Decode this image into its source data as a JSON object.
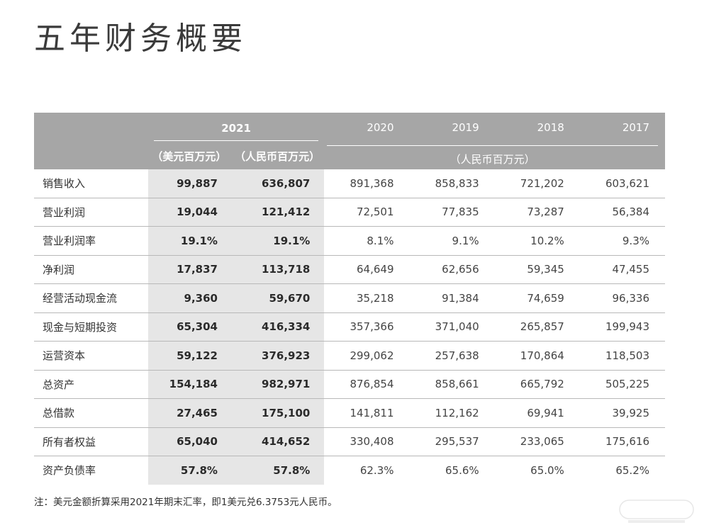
{
  "title": "五年财务概要",
  "header": {
    "y2021": "2021",
    "years": [
      "2020",
      "2019",
      "2018",
      "2017"
    ],
    "unit_usd": "（美元百万元）",
    "unit_rmb_2021": "（人民币百万元）",
    "unit_rmb_others": "（人民币百万元）"
  },
  "rows": [
    {
      "label": "销售收入",
      "usd": "99,887",
      "rmb": "636,807",
      "y2020": "891,368",
      "y2019": "858,833",
      "y2018": "721,202",
      "y2017": "603,621"
    },
    {
      "label": "营业利润",
      "usd": "19,044",
      "rmb": "121,412",
      "y2020": "72,501",
      "y2019": "77,835",
      "y2018": "73,287",
      "y2017": "56,384"
    },
    {
      "label": "营业利润率",
      "usd": "19.1%",
      "rmb": "19.1%",
      "y2020": "8.1%",
      "y2019": "9.1%",
      "y2018": "10.2%",
      "y2017": "9.3%"
    },
    {
      "label": "净利润",
      "usd": "17,837",
      "rmb": "113,718",
      "y2020": "64,649",
      "y2019": "62,656",
      "y2018": "59,345",
      "y2017": "47,455"
    },
    {
      "label": "经营活动现金流",
      "usd": "9,360",
      "rmb": "59,670",
      "y2020": "35,218",
      "y2019": "91,384",
      "y2018": "74,659",
      "y2017": "96,336"
    },
    {
      "label": "现金与短期投资",
      "usd": "65,304",
      "rmb": "416,334",
      "y2020": "357,366",
      "y2019": "371,040",
      "y2018": "265,857",
      "y2017": "199,943"
    },
    {
      "label": "运营资本",
      "usd": "59,122",
      "rmb": "376,923",
      "y2020": "299,062",
      "y2019": "257,638",
      "y2018": "170,864",
      "y2017": "118,503"
    },
    {
      "label": "总资产",
      "usd": "154,184",
      "rmb": "982,971",
      "y2020": "876,854",
      "y2019": "858,661",
      "y2018": "665,792",
      "y2017": "505,225"
    },
    {
      "label": "总借款",
      "usd": "27,465",
      "rmb": "175,100",
      "y2020": "141,811",
      "y2019": "112,162",
      "y2018": "69,941",
      "y2017": "39,925"
    },
    {
      "label": "所有者权益",
      "usd": "65,040",
      "rmb": "414,652",
      "y2020": "330,408",
      "y2019": "295,537",
      "y2018": "233,065",
      "y2017": "175,616"
    },
    {
      "label": "资产负债率",
      "usd": "57.8%",
      "rmb": "57.8%",
      "y2020": "62.3%",
      "y2019": "65.6%",
      "y2018": "65.0%",
      "y2017": "65.2%"
    }
  ],
  "footnote": "注：美元金额折算采用2021年期末汇率，即1美元兑6.3753元人民币。"
}
